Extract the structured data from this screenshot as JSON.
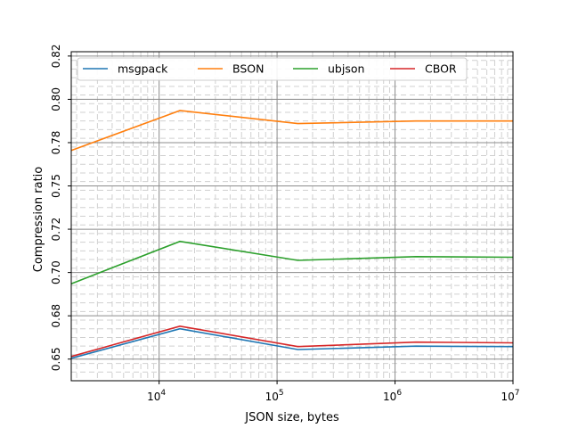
{
  "chart_data": {
    "type": "line",
    "xlabel": "JSON size, bytes",
    "ylabel": "Compression ratio",
    "xscale": "log",
    "xlim": [
      1800,
      10000000
    ],
    "ylim": [
      0.6375,
      0.8275
    ],
    "x_ticks": [
      {
        "value": 10000,
        "base": "10",
        "exp": "4"
      },
      {
        "value": 100000,
        "base": "10",
        "exp": "5"
      },
      {
        "value": 1000000,
        "base": "10",
        "exp": "6"
      },
      {
        "value": 10000000,
        "base": "10",
        "exp": "7"
      }
    ],
    "y_ticks": [
      {
        "value": 0.65,
        "label": "0.65"
      },
      {
        "value": 0.675,
        "label": "0.68"
      },
      {
        "value": 0.7,
        "label": "0.70"
      },
      {
        "value": 0.725,
        "label": "0.72"
      },
      {
        "value": 0.75,
        "label": "0.75"
      },
      {
        "value": 0.775,
        "label": "0.78"
      },
      {
        "value": 0.8,
        "label": "0.80"
      },
      {
        "value": 0.825,
        "label": "0.82"
      }
    ],
    "grid": true,
    "minor_grid": true,
    "legend_position": "top",
    "x": [
      1800,
      15000,
      150000,
      1500000,
      10000000
    ],
    "series": [
      {
        "name": "msgpack",
        "color": "#1f77b4",
        "values": [
          0.6505,
          0.6675,
          0.6555,
          0.6575,
          0.6572
        ]
      },
      {
        "name": "BSON",
        "color": "#ff7f0e",
        "values": [
          0.7705,
          0.7935,
          0.786,
          0.7875,
          0.7875
        ]
      },
      {
        "name": "ubjson",
        "color": "#2ca02c",
        "values": [
          0.6935,
          0.718,
          0.707,
          0.7092,
          0.7088
        ]
      },
      {
        "name": "CBOR",
        "color": "#d62728",
        "values": [
          0.6515,
          0.669,
          0.6572,
          0.6598,
          0.6594
        ]
      }
    ]
  }
}
